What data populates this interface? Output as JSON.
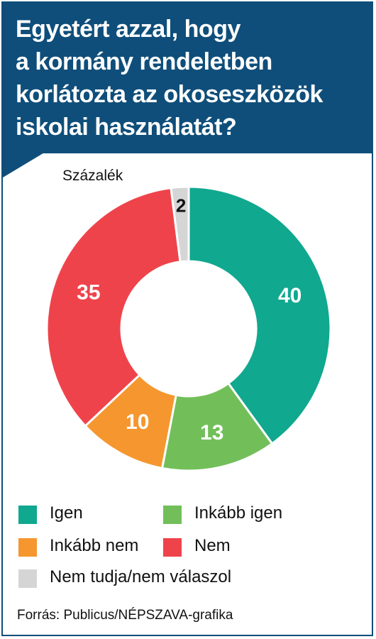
{
  "header": {
    "title_lines": [
      "Egyetért azzal, hogy",
      "a kormány rendeletben",
      "korlátozta az okoseszközök",
      "iskolai használatát?"
    ]
  },
  "unit_label": "Százalék",
  "source": "Forrás: Publicus/NÉPSZAVA-grafika",
  "chart_data": {
    "type": "pie",
    "donut": true,
    "unit": "Százalék",
    "categories": [
      "Igen",
      "Inkább igen",
      "Inkább nem",
      "Nem",
      "Nem tudja/nem válaszol"
    ],
    "values": [
      40,
      13,
      10,
      35,
      2
    ],
    "colors": [
      "#10a88f",
      "#72bf5a",
      "#f5972e",
      "#ef434b",
      "#d5d5d5"
    ],
    "label_colors": [
      "#ffffff",
      "#ffffff",
      "#ffffff",
      "#ffffff",
      "#111111"
    ],
    "start_angle_deg": 0,
    "direction": "clockwise",
    "legend_placement": "bottom"
  },
  "legend": [
    {
      "label": "Igen",
      "color": "#10a88f"
    },
    {
      "label": "Inkább igen",
      "color": "#72bf5a"
    },
    {
      "label": "Inkább nem",
      "color": "#f5972e"
    },
    {
      "label": "Nem",
      "color": "#ef434b"
    },
    {
      "label": "Nem tudja/nem válaszol",
      "color": "#d5d5d5"
    }
  ]
}
